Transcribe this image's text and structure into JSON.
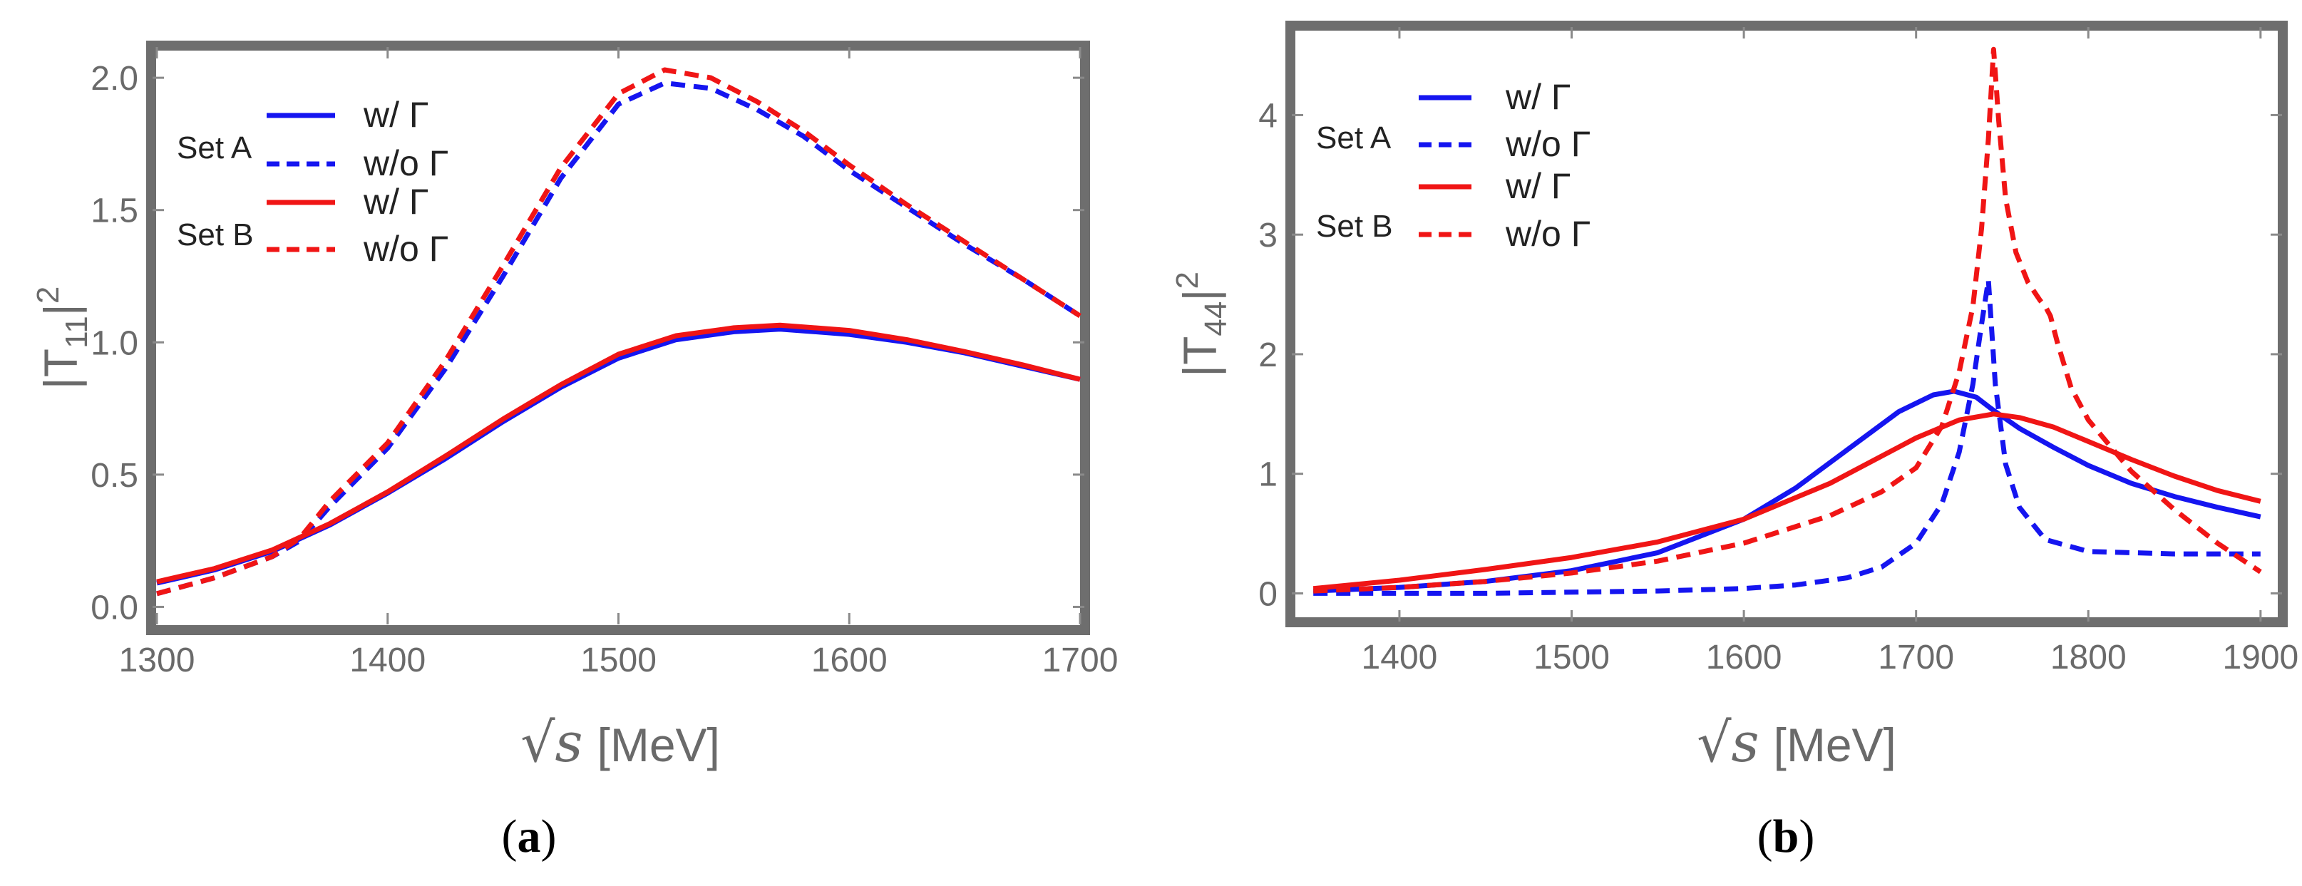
{
  "chart_data": [
    {
      "type": "line",
      "panel_label": "a",
      "xlabel": "[MeV]",
      "xlabel_prefix": "√s",
      "ylabel": "|T",
      "ylabel_subscript": "11",
      "ylabel_suffix": "|",
      "ylabel_power": "2",
      "xlim": [
        1300,
        1700
      ],
      "ylim": [
        -0.05,
        2.1
      ],
      "xticks": [
        1300,
        1400,
        1500,
        1600,
        1700
      ],
      "xtick_labels": [
        "1300",
        "1400",
        "1500",
        "1600",
        "1700"
      ],
      "yticks": [
        0.0,
        0.5,
        1.0,
        1.5,
        2.0
      ],
      "ytick_labels": [
        "0.0",
        "0.5",
        "1.0",
        "1.5",
        "2.0"
      ],
      "legend": {
        "position": "top-left",
        "groups": [
          {
            "set_label": "Set A",
            "entries": [
              {
                "label": "w/  Γ",
                "color": "#1515f0",
                "dash": "solid"
              },
              {
                "label": "w/o Γ",
                "color": "#1515f0",
                "dash": "dashed"
              }
            ]
          },
          {
            "set_label": "Set B",
            "entries": [
              {
                "label": "w/  Γ",
                "color": "#f01515",
                "dash": "solid"
              },
              {
                "label": "w/o Γ",
                "color": "#f01515",
                "dash": "dashed"
              }
            ]
          }
        ]
      },
      "series": [
        {
          "name": "Set A w/ Γ",
          "color": "#1515f0",
          "dash": "solid",
          "x": [
            1300,
            1325,
            1350,
            1375,
            1400,
            1425,
            1450,
            1475,
            1500,
            1525,
            1550,
            1570,
            1600,
            1625,
            1650,
            1675,
            1700
          ],
          "y": [
            0.09,
            0.14,
            0.21,
            0.31,
            0.43,
            0.56,
            0.7,
            0.83,
            0.94,
            1.01,
            1.04,
            1.05,
            1.03,
            1.0,
            0.96,
            0.91,
            0.86
          ]
        },
        {
          "name": "Set A w/o Γ",
          "color": "#1515f0",
          "dash": "dashed",
          "x": [
            1300,
            1325,
            1350,
            1362,
            1375,
            1400,
            1425,
            1450,
            1475,
            1500,
            1520,
            1540,
            1560,
            1580,
            1600,
            1625,
            1650,
            1675,
            1700
          ],
          "y": [
            0.05,
            0.11,
            0.19,
            0.25,
            0.38,
            0.6,
            0.9,
            1.25,
            1.62,
            1.9,
            1.98,
            1.96,
            1.88,
            1.78,
            1.65,
            1.51,
            1.37,
            1.24,
            1.1
          ]
        },
        {
          "name": "Set B w/ Γ",
          "color": "#f01515",
          "dash": "solid",
          "x": [
            1300,
            1325,
            1350,
            1375,
            1400,
            1425,
            1450,
            1475,
            1500,
            1525,
            1550,
            1570,
            1600,
            1625,
            1650,
            1675,
            1700
          ],
          "y": [
            0.095,
            0.145,
            0.215,
            0.315,
            0.435,
            0.57,
            0.71,
            0.84,
            0.955,
            1.025,
            1.055,
            1.065,
            1.045,
            1.01,
            0.965,
            0.915,
            0.86
          ]
        },
        {
          "name": "Set B w/o Γ",
          "color": "#f01515",
          "dash": "dashed",
          "x": [
            1300,
            1325,
            1350,
            1362,
            1375,
            1400,
            1425,
            1450,
            1475,
            1500,
            1520,
            1540,
            1560,
            1580,
            1600,
            1625,
            1650,
            1675,
            1700
          ],
          "y": [
            0.05,
            0.11,
            0.19,
            0.26,
            0.4,
            0.62,
            0.93,
            1.29,
            1.66,
            1.94,
            2.03,
            2.0,
            1.91,
            1.8,
            1.67,
            1.52,
            1.38,
            1.24,
            1.1
          ]
        }
      ]
    },
    {
      "type": "line",
      "panel_label": "b",
      "xlabel": "[MeV]",
      "xlabel_prefix": "√s",
      "ylabel": "|T",
      "ylabel_subscript": "44",
      "ylabel_suffix": "|",
      "ylabel_power": "2",
      "xlim": [
        1340,
        1910
      ],
      "ylim": [
        -0.2,
        4.7
      ],
      "xticks": [
        1400,
        1500,
        1600,
        1700,
        1800,
        1900
      ],
      "xtick_labels": [
        "1400",
        "1500",
        "1600",
        "1700",
        "1800",
        "1900"
      ],
      "yticks": [
        0,
        1,
        2,
        3,
        4
      ],
      "ytick_labels": [
        "0",
        "1",
        "2",
        "3",
        "4"
      ],
      "legend": {
        "position": "top-left",
        "groups": [
          {
            "set_label": "Set A",
            "entries": [
              {
                "label": "w/  Γ",
                "color": "#1515f0",
                "dash": "solid"
              },
              {
                "label": "w/o Γ",
                "color": "#1515f0",
                "dash": "dashed"
              }
            ]
          },
          {
            "set_label": "Set B",
            "entries": [
              {
                "label": "w/ Γ",
                "color": "#f01515",
                "dash": "solid"
              },
              {
                "label": "w/o Γ",
                "color": "#f01515",
                "dash": "dashed"
              }
            ]
          }
        ]
      },
      "series": [
        {
          "name": "Set A w/ Γ",
          "color": "#1515f0",
          "dash": "solid",
          "x": [
            1350,
            1400,
            1450,
            1500,
            1550,
            1600,
            1630,
            1660,
            1690,
            1710,
            1722,
            1735,
            1745,
            1760,
            1780,
            1800,
            1825,
            1850,
            1875,
            1900
          ],
          "y": [
            0.02,
            0.05,
            0.1,
            0.19,
            0.34,
            0.62,
            0.88,
            1.2,
            1.52,
            1.66,
            1.69,
            1.64,
            1.53,
            1.38,
            1.22,
            1.07,
            0.92,
            0.81,
            0.72,
            0.64
          ]
        },
        {
          "name": "Set A w/o Γ",
          "color": "#1515f0",
          "dash": "dashed",
          "x": [
            1350,
            1400,
            1450,
            1500,
            1550,
            1600,
            1630,
            1660,
            1680,
            1700,
            1715,
            1725,
            1733,
            1738,
            1742,
            1746,
            1752,
            1760,
            1775,
            1800,
            1850,
            1900
          ],
          "y": [
            0.0,
            0.0,
            0.0,
            0.01,
            0.02,
            0.04,
            0.07,
            0.13,
            0.22,
            0.42,
            0.75,
            1.18,
            1.75,
            2.25,
            2.62,
            1.75,
            1.08,
            0.72,
            0.45,
            0.35,
            0.33,
            0.33
          ]
        },
        {
          "name": "Set B w/ Γ",
          "color": "#f01515",
          "dash": "solid",
          "x": [
            1350,
            1400,
            1450,
            1500,
            1550,
            1600,
            1650,
            1700,
            1725,
            1745,
            1760,
            1780,
            1800,
            1825,
            1850,
            1875,
            1900
          ],
          "y": [
            0.04,
            0.11,
            0.2,
            0.3,
            0.43,
            0.62,
            0.92,
            1.3,
            1.45,
            1.5,
            1.47,
            1.39,
            1.27,
            1.12,
            0.98,
            0.86,
            0.77
          ]
        },
        {
          "name": "Set B w/o Γ",
          "color": "#f01515",
          "dash": "dashed",
          "x": [
            1350,
            1400,
            1450,
            1500,
            1550,
            1600,
            1650,
            1680,
            1700,
            1715,
            1725,
            1733,
            1738,
            1742,
            1745,
            1748,
            1752,
            1758,
            1765,
            1772,
            1775,
            1778,
            1782,
            1790,
            1800,
            1825,
            1850,
            1875,
            1900
          ],
          "y": [
            0.02,
            0.05,
            0.1,
            0.17,
            0.27,
            0.42,
            0.65,
            0.85,
            1.05,
            1.4,
            1.85,
            2.4,
            3.05,
            3.8,
            4.55,
            3.95,
            3.3,
            2.85,
            2.6,
            2.45,
            2.4,
            2.32,
            2.1,
            1.72,
            1.45,
            1.02,
            0.7,
            0.42,
            0.18
          ]
        }
      ]
    }
  ]
}
